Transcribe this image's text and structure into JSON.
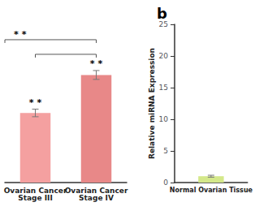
{
  "chart_data": [
    {
      "type": "bar",
      "categories": [
        "Ovarian Cancer\nStage III",
        "Ovarian Cancer\nStage IV"
      ],
      "values": [
        11.0,
        17.0
      ],
      "errors": [
        0.6,
        0.7
      ],
      "colors": [
        "#f4a0a0",
        "#e88888"
      ],
      "ylim": [
        0,
        25
      ],
      "tick_labels": "x",
      "grid": false,
      "annotations": [
        "* *",
        "* *",
        "* *"
      ]
    },
    {
      "type": "bar",
      "title": "b",
      "categories": [
        "Normal Ovarian Tissue"
      ],
      "values": [
        1.0
      ],
      "errors": [
        0.15
      ],
      "color": "#d4e88a",
      "ylabel": "Relative miRNA Expression",
      "ylim": [
        0,
        25
      ],
      "yticks": [
        0,
        5,
        10,
        15,
        20,
        25
      ],
      "grid": false
    }
  ]
}
